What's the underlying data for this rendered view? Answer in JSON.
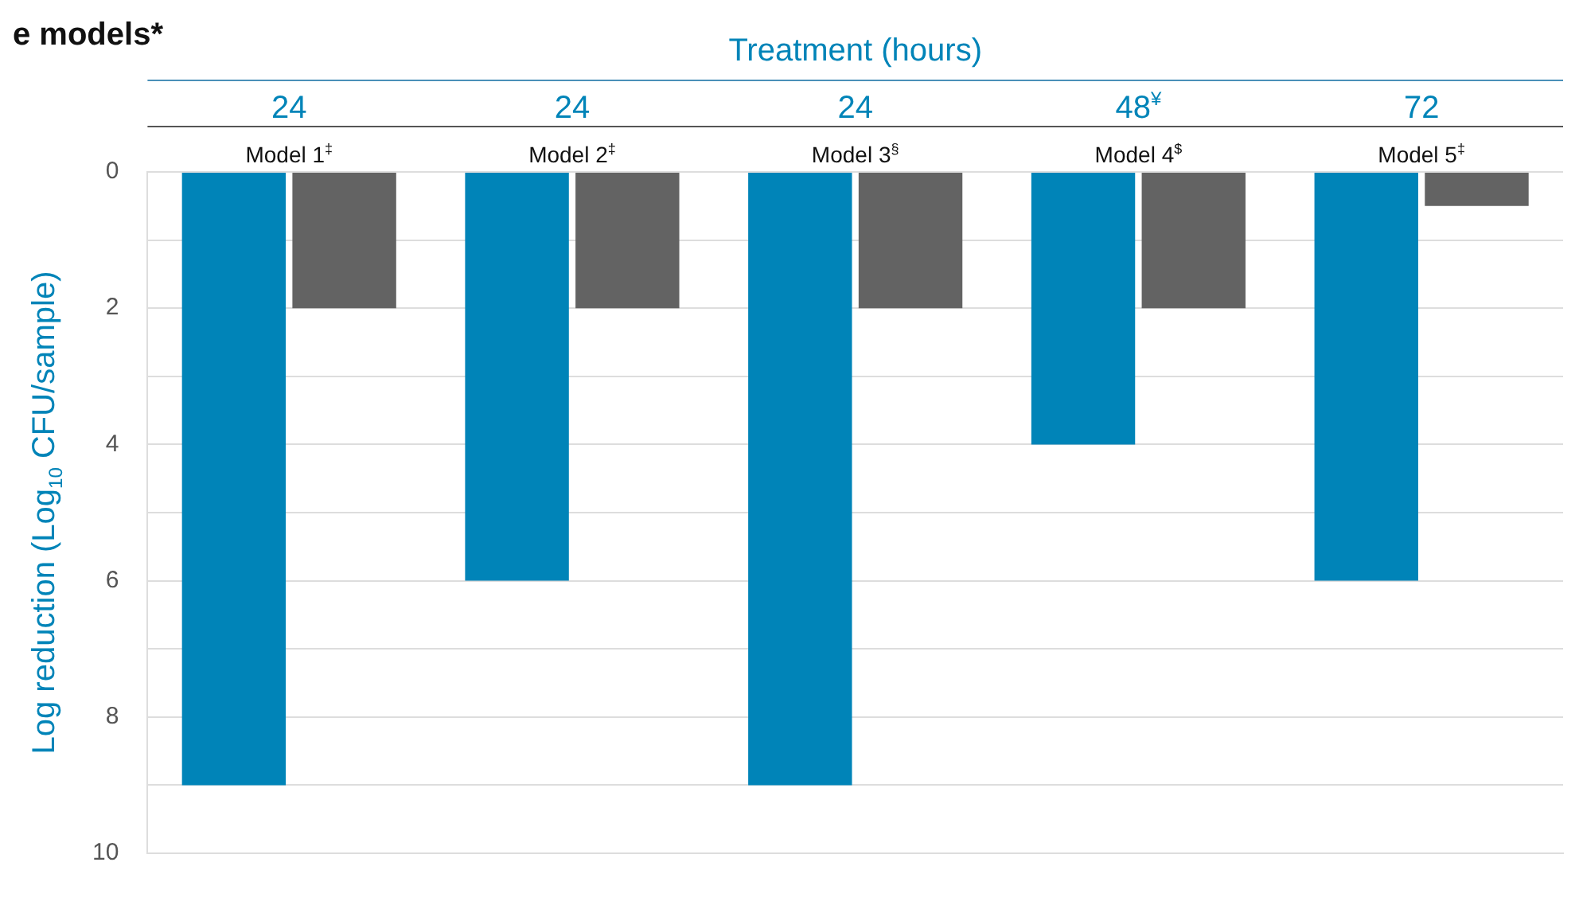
{
  "chart_data": {
    "type": "bar",
    "title": "e models*",
    "x2label": "Treatment (hours)",
    "ylabel": "Log reduction (Log$_{10}$ CFU/sample)",
    "categories": [
      "Model 1$^{‡}$",
      "Model 2$^{‡}$",
      "Model 3$^{§}$",
      "Model 4$^{$}$",
      "Model 5$^{‡}$"
    ],
    "series": [
      {
        "color": "#0084b8",
        "values": [
          9,
          6,
          9,
          4,
          6
        ]
      },
      {
        "color": "#636363",
        "values": [
          2,
          2,
          2,
          2,
          0.5
        ]
      }
    ],
    "ylim": [
      10,
      0
    ],
    "yticks": [
      0,
      {
        "value": 1,
        "label": null
      },
      2,
      {
        "value": 3,
        "label": null
      },
      4,
      {
        "value": 5,
        "label": null
      },
      6,
      {
        "value": 7,
        "label": null
      },
      8,
      {
        "value": 9,
        "label": null
      },
      10
    ],
    "grid": "y",
    "legend": false,
    "annotations": [
      "24",
      "24",
      "24",
      "48$^{¥}$",
      "72"
    ]
  }
}
